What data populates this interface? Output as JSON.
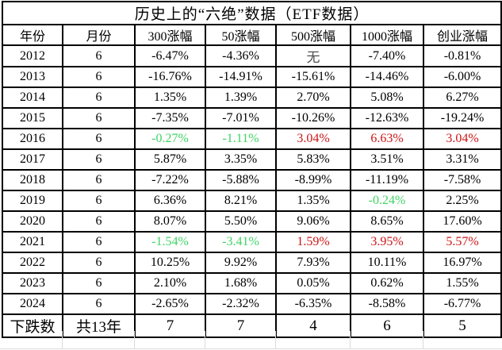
{
  "title": "历史上的“六绝”数据（ETF数据）",
  "columns": [
    "年份",
    "月份",
    "300涨幅",
    "50涨幅",
    "500涨幅",
    "1000涨幅",
    "创业涨幅"
  ],
  "rows": [
    {
      "year": "2012",
      "month": "6",
      "values": [
        "-6.47%",
        "-4.36%",
        "无",
        "-7.40%",
        "-0.81%"
      ],
      "colors": [
        "k",
        "k",
        "m",
        "k",
        "k"
      ]
    },
    {
      "year": "2013",
      "month": "6",
      "values": [
        "-16.76%",
        "-14.91%",
        "-15.61%",
        "-14.46%",
        "-6.00%"
      ],
      "colors": [
        "k",
        "k",
        "k",
        "k",
        "k"
      ]
    },
    {
      "year": "2014",
      "month": "6",
      "values": [
        "1.35%",
        "1.39%",
        "2.70%",
        "5.08%",
        "6.27%"
      ],
      "colors": [
        "k",
        "k",
        "k",
        "k",
        "k"
      ]
    },
    {
      "year": "2015",
      "month": "6",
      "values": [
        "-7.35%",
        "-7.01%",
        "-10.26%",
        "-12.63%",
        "-19.24%"
      ],
      "colors": [
        "k",
        "k",
        "k",
        "k",
        "k"
      ]
    },
    {
      "year": "2016",
      "month": "6",
      "values": [
        "-0.27%",
        "-1.11%",
        "3.04%",
        "6.63%",
        "3.04%"
      ],
      "colors": [
        "g",
        "g",
        "r",
        "r",
        "r"
      ]
    },
    {
      "year": "2017",
      "month": "6",
      "values": [
        "5.87%",
        "3.35%",
        "5.83%",
        "3.51%",
        "3.31%"
      ],
      "colors": [
        "k",
        "k",
        "k",
        "k",
        "k"
      ]
    },
    {
      "year": "2018",
      "month": "6",
      "values": [
        "-7.22%",
        "-5.88%",
        "-8.99%",
        "-11.19%",
        "-7.58%"
      ],
      "colors": [
        "k",
        "k",
        "k",
        "k",
        "k"
      ]
    },
    {
      "year": "2019",
      "month": "6",
      "values": [
        "6.36%",
        "8.21%",
        "1.35%",
        "-0.24%",
        "2.25%"
      ],
      "colors": [
        "k",
        "k",
        "k",
        "g",
        "k"
      ]
    },
    {
      "year": "2020",
      "month": "6",
      "values": [
        "8.07%",
        "5.50%",
        "9.06%",
        "8.65%",
        "17.60%"
      ],
      "colors": [
        "k",
        "k",
        "k",
        "k",
        "k"
      ]
    },
    {
      "year": "2021",
      "month": "6",
      "values": [
        "-1.54%",
        "-3.41%",
        "1.59%",
        "3.95%",
        "5.57%"
      ],
      "colors": [
        "g",
        "g",
        "r",
        "r",
        "r"
      ]
    },
    {
      "year": "2022",
      "month": "6",
      "values": [
        "10.25%",
        "9.92%",
        "7.93%",
        "10.11%",
        "16.97%"
      ],
      "colors": [
        "k",
        "k",
        "k",
        "k",
        "k"
      ]
    },
    {
      "year": "2023",
      "month": "6",
      "values": [
        "2.10%",
        "1.68%",
        "0.05%",
        "0.62%",
        "1.55%"
      ],
      "colors": [
        "k",
        "k",
        "k",
        "k",
        "k"
      ]
    },
    {
      "year": "2024",
      "month": "6",
      "values": [
        "-2.65%",
        "-2.32%",
        "-6.35%",
        "-8.58%",
        "-6.77%"
      ],
      "colors": [
        "k",
        "k",
        "k",
        "k",
        "k"
      ]
    }
  ],
  "summary": {
    "label": "下跌数",
    "period": "共13年",
    "values": [
      "7",
      "7",
      "4",
      "6",
      "5"
    ]
  },
  "colors": {
    "red": "#cc1414",
    "green": "#3fd463",
    "muted": "#4f4f4f",
    "border": "#000000",
    "gridline": "#dcdcdc"
  }
}
